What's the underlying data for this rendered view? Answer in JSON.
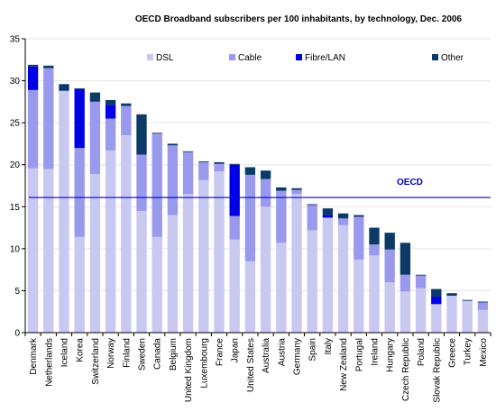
{
  "colors": {
    "DSL": "#c8c8f0",
    "Cable": "#9999ee",
    "Fibre/LAN": "#0000e6",
    "Other": "#0b3a66",
    "oecd_line": "#0000cc",
    "grid": "#e6e6e6"
  },
  "chart_data": {
    "type": "bar",
    "stacked": true,
    "title": "OECD Broadband subscribers per 100 inhabitants, by technology, Dec. 2006",
    "xlabel": "",
    "ylabel": "",
    "ylim": [
      0,
      35
    ],
    "yticks": [
      0,
      5,
      10,
      15,
      20,
      25,
      30,
      35
    ],
    "legend_position": "top",
    "categories": [
      "Denmark",
      "Netherlands",
      "Iceland",
      "Korea",
      "Switzerland",
      "Norway",
      "Finland",
      "Sweden",
      "Canada",
      "Belgium",
      "United Kingdom",
      "Luxembourg",
      "France",
      "Japan",
      "United States",
      "Australia",
      "Austria",
      "Germany",
      "Spain",
      "Italy",
      "New Zealand",
      "Portugal",
      "Ireland",
      "Hungary",
      "Czech Republic",
      "Poland",
      "Slovak Republic",
      "Greece",
      "Turkey",
      "Mexico"
    ],
    "series": [
      {
        "name": "DSL",
        "values": [
          19.6,
          19.5,
          28.8,
          11.4,
          18.9,
          21.7,
          23.5,
          14.5,
          11.4,
          14.0,
          16.5,
          18.2,
          19.2,
          11.1,
          8.5,
          15.0,
          10.7,
          16.5,
          12.2,
          13.7,
          12.8,
          8.7,
          9.2,
          6.0,
          4.9,
          5.3,
          3.4,
          4.4,
          3.8,
          2.7
        ]
      },
      {
        "name": "Cable",
        "values": [
          9.3,
          12.0,
          0.0,
          10.6,
          8.6,
          3.8,
          3.5,
          6.7,
          12.3,
          8.3,
          5.0,
          2.1,
          0.9,
          2.8,
          10.3,
          3.3,
          6.2,
          0.5,
          3.0,
          0.0,
          0.8,
          5.1,
          1.3,
          3.9,
          2.0,
          1.5,
          0.0,
          0.0,
          0.0,
          0.9
        ]
      },
      {
        "name": "Fibre/LAN",
        "values": [
          2.8,
          0.0,
          0.0,
          7.0,
          0.0,
          1.6,
          0.0,
          0.0,
          0.0,
          0.0,
          0.0,
          0.0,
          0.0,
          6.1,
          0.0,
          0.0,
          0.0,
          0.0,
          0.0,
          0.3,
          0.0,
          0.0,
          0.0,
          0.0,
          0.0,
          0.0,
          0.9,
          0.0,
          0.0,
          0.0
        ]
      },
      {
        "name": "Other",
        "values": [
          0.2,
          0.3,
          0.8,
          0.1,
          1.1,
          0.6,
          0.3,
          4.8,
          0.1,
          0.2,
          0.1,
          0.1,
          0.2,
          0.1,
          0.9,
          1.0,
          0.4,
          0.2,
          0.1,
          0.8,
          0.6,
          0.2,
          2.0,
          2.0,
          3.8,
          0.1,
          0.9,
          0.3,
          0.1,
          0.1
        ]
      }
    ],
    "reference_line": {
      "label": "OECD",
      "value": 16.1
    },
    "grid": true
  }
}
